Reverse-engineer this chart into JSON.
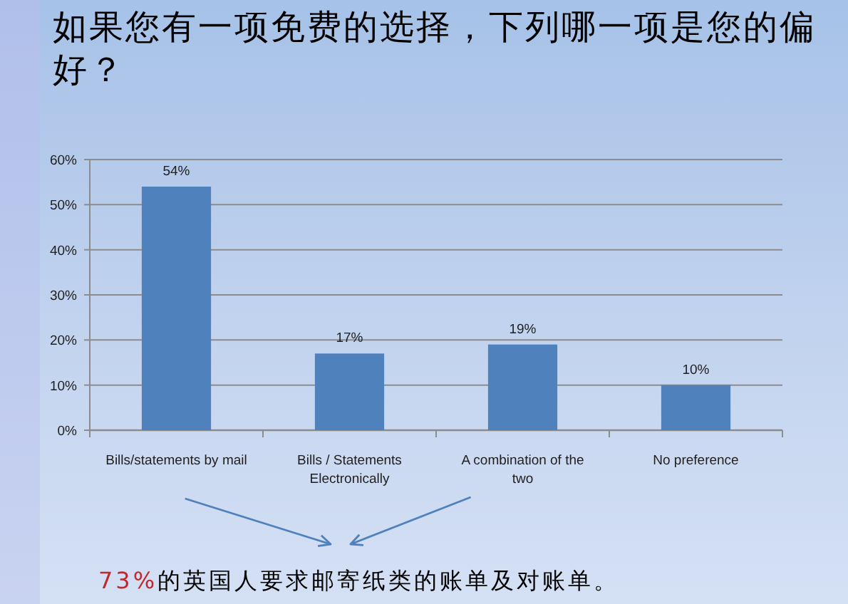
{
  "chart_data": {
    "type": "bar",
    "title": "如果您有一项免费的选择，下列哪一项是您的偏好？",
    "categories": [
      "Bills/statements by mail",
      "Bills / Statements Electronically",
      "A combination of the two",
      "No preference"
    ],
    "values": [
      54,
      17,
      19,
      10
    ],
    "value_labels": [
      "54%",
      "17%",
      "19%",
      "10%"
    ],
    "color": "#4f81bd",
    "ylim": [
      0,
      60
    ],
    "yticks": [
      {
        "value": 0,
        "label": "0%"
      },
      {
        "value": 10,
        "label": "10%"
      },
      {
        "value": 20,
        "label": "20%"
      },
      {
        "value": 30,
        "label": "30%"
      },
      {
        "value": 40,
        "label": "40%"
      },
      {
        "value": 50,
        "label": "50%"
      },
      {
        "value": 60,
        "label": "60%"
      }
    ],
    "grid": "y",
    "annotations": [
      "73%的英国人要求邮寄纸类的账单及对账单。"
    ]
  }
}
